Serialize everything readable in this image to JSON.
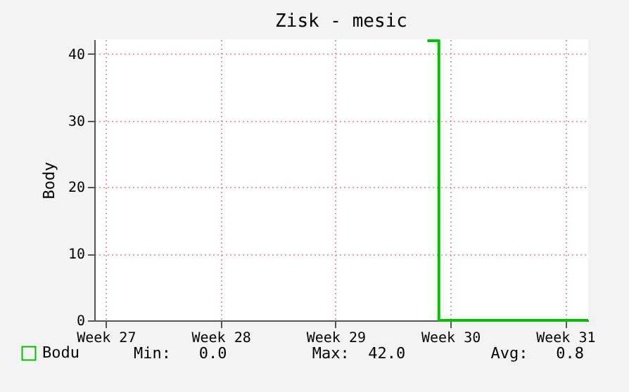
{
  "chart_data": {
    "type": "step",
    "title": "Zisk - mesic",
    "ylabel": "Body",
    "categories": [
      null,
      "Week 27",
      null,
      null,
      null,
      null,
      null,
      null,
      null,
      null,
      null,
      "Week 28",
      null,
      null,
      null,
      null,
      null,
      null,
      null,
      null,
      null,
      "Week 29",
      null,
      null,
      null,
      null,
      null,
      null,
      null,
      null,
      null,
      "Week 30",
      null,
      null,
      null,
      null,
      null,
      null,
      null,
      null,
      null,
      "Week 31",
      null,
      null
    ],
    "ylim": [
      0,
      42.2
    ],
    "yticks": [
      0,
      10,
      20,
      30,
      40
    ],
    "series": [
      {
        "name": "Bodu",
        "color": "#00c000",
        "values": [
          null,
          null,
          null,
          null,
          null,
          null,
          null,
          null,
          null,
          null,
          null,
          null,
          null,
          null,
          null,
          null,
          null,
          null,
          null,
          null,
          null,
          null,
          null,
          null,
          null,
          null,
          null,
          null,
          null,
          42,
          0,
          0,
          0,
          0,
          0,
          0,
          0,
          0,
          0,
          0,
          0,
          0,
          0,
          0
        ]
      }
    ],
    "annotations": [
      "Min:   0.0",
      "Max:  42.0",
      "Avg:   0.8"
    ],
    "grid": true,
    "legend": "bottom",
    "marker": "none",
    "line_style": "solid"
  }
}
